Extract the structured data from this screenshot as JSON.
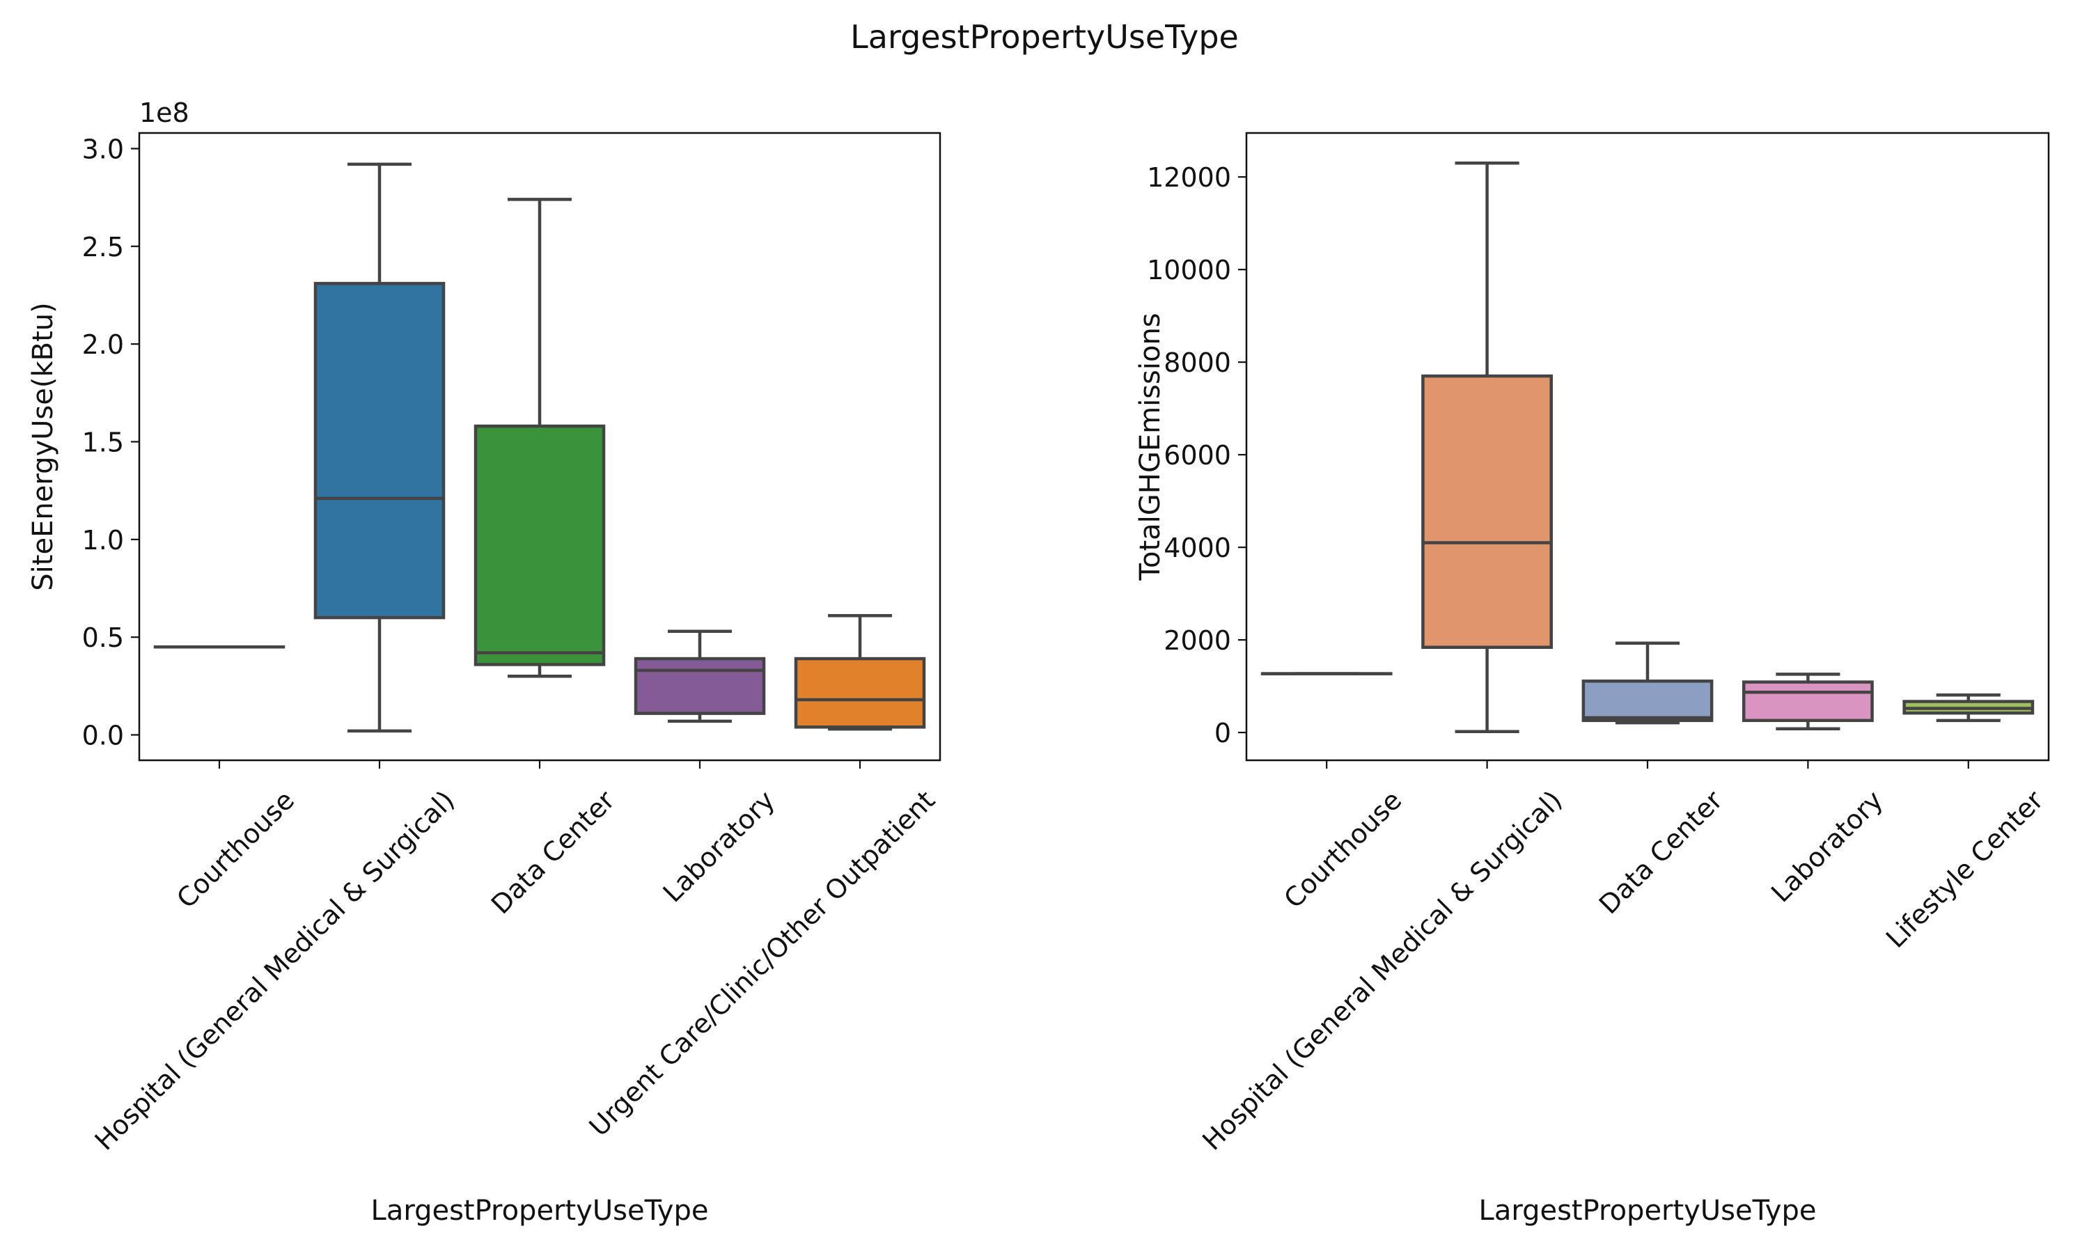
{
  "figure_title": "LargestPropertyUseType",
  "chart_data": [
    {
      "type": "box",
      "title": "",
      "xlabel": "LargestPropertyUseType",
      "ylabel": "SiteEnergyUse(kBtu)",
      "y_offset_label": "1e8",
      "ylim": [
        -0.13,
        3.08
      ],
      "yticks": [
        0,
        0.5,
        1.0,
        1.5,
        2.0,
        2.5,
        3.0
      ],
      "ytick_labels": [
        "0.0",
        "0.5",
        "1.0",
        "1.5",
        "2.0",
        "2.5",
        "3.0"
      ],
      "units_note": "values in units of 1e8 kBtu",
      "categories": [
        "Courthouse",
        "Hospital (General Medical & Surgical)",
        "Data Center",
        "Laboratory",
        "Urgent Care/Clinic/Other Outpatient"
      ],
      "boxes": [
        {
          "whisker_low": 0.45,
          "q1": 0.45,
          "median": 0.45,
          "q3": 0.45,
          "whisker_high": 0.45,
          "color": "#3274a1"
        },
        {
          "whisker_low": 0.02,
          "q1": 0.6,
          "median": 1.21,
          "q3": 2.31,
          "whisker_high": 2.92,
          "color": "#3274a1"
        },
        {
          "whisker_low": 0.3,
          "q1": 0.36,
          "median": 0.42,
          "q3": 1.58,
          "whisker_high": 2.74,
          "color": "#3a923a"
        },
        {
          "whisker_low": 0.07,
          "q1": 0.11,
          "median": 0.33,
          "q3": 0.39,
          "whisker_high": 0.53,
          "color": "#845b97"
        },
        {
          "whisker_low": 0.03,
          "q1": 0.04,
          "median": 0.18,
          "q3": 0.39,
          "whisker_high": 0.61,
          "color": "#e1812c"
        }
      ],
      "grid": false
    },
    {
      "type": "box",
      "title": "",
      "xlabel": "LargestPropertyUseType",
      "ylabel": "TotalGHGEmissions",
      "y_offset_label": "",
      "ylim": [
        -600,
        12950
      ],
      "yticks": [
        0,
        2000,
        4000,
        6000,
        8000,
        10000,
        12000
      ],
      "ytick_labels": [
        "0",
        "2000",
        "4000",
        "6000",
        "8000",
        "10000",
        "12000"
      ],
      "categories": [
        "Courthouse",
        "Hospital (General Medical & Surgical)",
        "Data Center",
        "Laboratory",
        "Lifestyle Center"
      ],
      "boxes": [
        {
          "whisker_low": 1270,
          "q1": 1270,
          "median": 1270,
          "q3": 1270,
          "whisker_high": 1270,
          "color": "#5f9e6e"
        },
        {
          "whisker_low": 20,
          "q1": 1840,
          "median": 4100,
          "q3": 7700,
          "whisker_high": 12300,
          "color": "#e1956c"
        },
        {
          "whisker_low": 210,
          "q1": 260,
          "median": 320,
          "q3": 1110,
          "whisker_high": 1930,
          "color": "#8c9ec2"
        },
        {
          "whisker_low": 80,
          "q1": 260,
          "median": 870,
          "q3": 1090,
          "whisker_high": 1260,
          "color": "#d994c1"
        },
        {
          "whisker_low": 260,
          "q1": 420,
          "median": 520,
          "q3": 670,
          "whisker_high": 810,
          "color": "#9fc05a"
        }
      ],
      "grid": false
    }
  ]
}
